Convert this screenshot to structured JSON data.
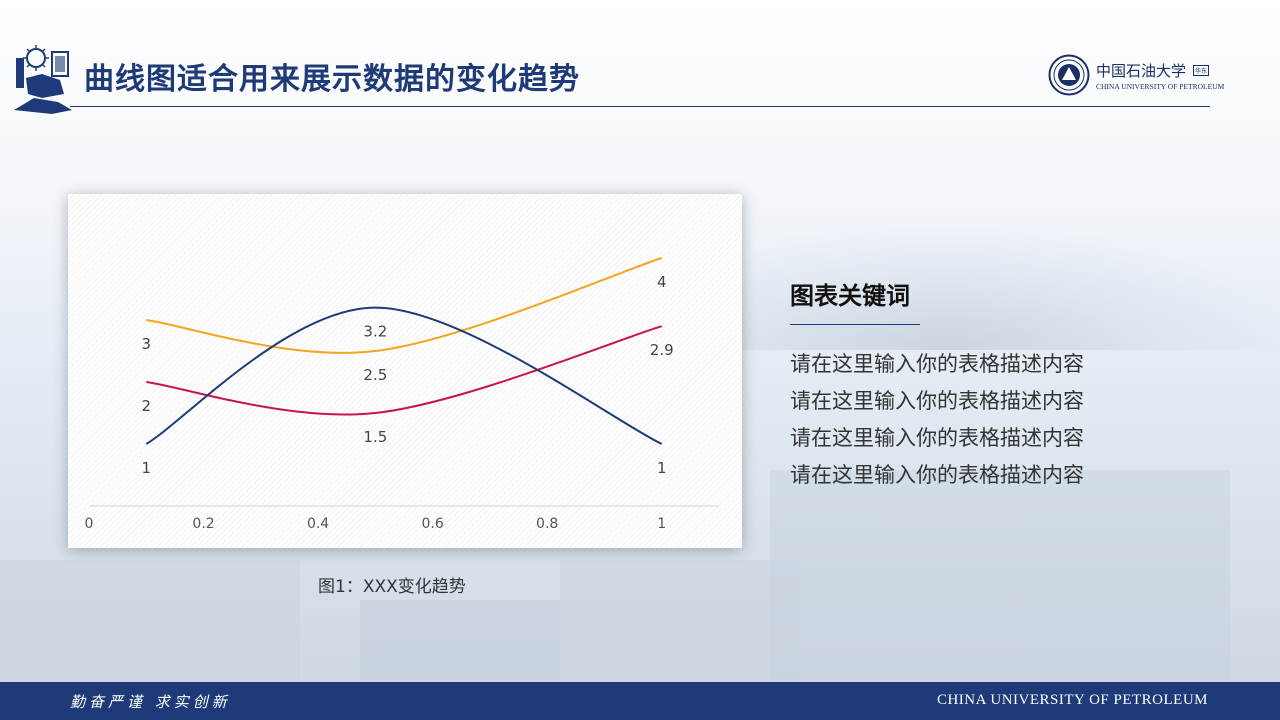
{
  "header": {
    "title": "曲线图适合用来展示数据的变化趋势",
    "logo_cn": "中国石油大学",
    "logo_tag": "华东",
    "logo_en": "CHINA UNIVERSITY OF PETROLEUM"
  },
  "chart_data": {
    "type": "line",
    "smooth": true,
    "x": [
      0.1,
      0.5,
      1
    ],
    "xticks": [
      "0",
      "0.2",
      "0.4",
      "0.6",
      "0.8",
      "1"
    ],
    "xlim": [
      0,
      1.1
    ],
    "ylim": [
      0,
      5
    ],
    "grid": false,
    "series": [
      {
        "color": "#f2a51e",
        "values": [
          3,
          2.5,
          4
        ],
        "labels": [
          "3",
          "2.5",
          "4"
        ]
      },
      {
        "color": "#c8144c",
        "values": [
          2,
          1.5,
          2.9
        ],
        "labels": [
          "2",
          "1.5",
          "2.9"
        ]
      },
      {
        "color": "#1e3a78",
        "values": [
          1,
          3.2,
          1
        ],
        "labels": [
          "1",
          "3.2",
          "1"
        ]
      }
    ],
    "caption": "图1：XXX变化趋势"
  },
  "keywords": {
    "title": "图表关键词",
    "items": [
      "请在这里输入你的表格描述内容",
      "请在这里输入你的表格描述内容",
      "请在这里输入你的表格描述内容",
      "请在这里输入你的表格描述内容"
    ]
  },
  "footer": {
    "motto": "勤奋严谨 求实创新",
    "english": "CHINA UNIVERSITY OF PETROLEUM"
  }
}
